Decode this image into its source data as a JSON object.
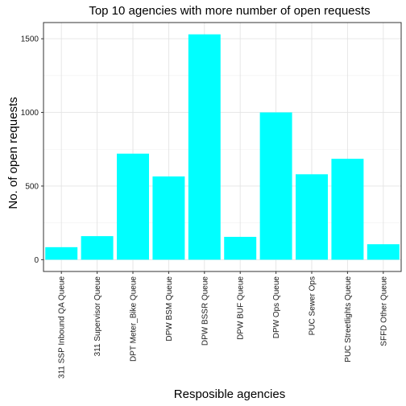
{
  "chart_data": {
    "type": "bar",
    "title": "Top 10 agencies with more number of open requests",
    "xlabel": "Resposible agencies",
    "ylabel": "No. of open requests",
    "categories": [
      "311 SSP Inbound QA Queue",
      "311 Supervisor Queue",
      "DPT Meter_Bike Queue",
      "DPW BSM Queue",
      "DPW BSSR Queue",
      "DPW BUF Queue",
      "DPW Ops Queue",
      "PUC Sewer Ops",
      "PUC Streetlights Queue",
      "SFFD Other Queue"
    ],
    "values": [
      85,
      160,
      720,
      565,
      1530,
      155,
      1000,
      580,
      685,
      105
    ],
    "ylim": [
      -80,
      1610
    ],
    "yticks": [
      0,
      500,
      1000,
      1500
    ],
    "grid": true,
    "bar_color": "#00ffff"
  }
}
